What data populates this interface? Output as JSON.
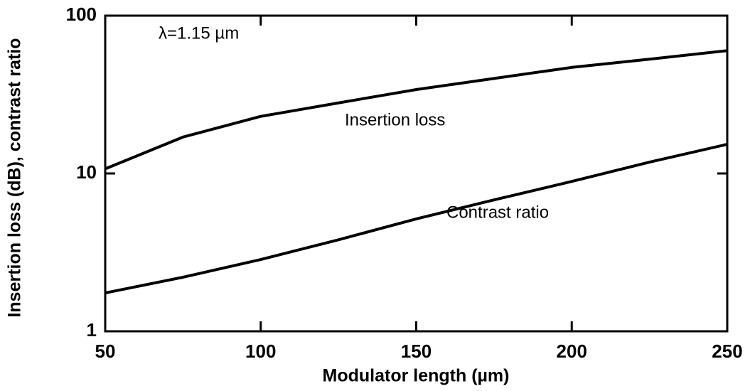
{
  "chart_data": {
    "type": "line",
    "xlabel": "Modulator length (µm)",
    "ylabel": "Insertion loss (dB), contrast ratio",
    "x": [
      50,
      75,
      100,
      125,
      150,
      175,
      200,
      225,
      250
    ],
    "series": [
      {
        "name": "Insertion loss",
        "color": "#000000",
        "values": [
          10.7,
          17,
          23,
          28,
          34,
          40,
          47,
          53,
          60
        ]
      },
      {
        "name": "Contrast ratio",
        "color": "#000000",
        "values": [
          1.75,
          2.2,
          2.85,
          3.8,
          5.15,
          6.8,
          8.9,
          11.8,
          15.3
        ]
      }
    ],
    "annotations": [
      "λ=1.15 µm"
    ],
    "xlim": [
      50,
      250
    ],
    "xticks": [
      50,
      100,
      150,
      200,
      250
    ],
    "ylim": [
      1,
      100
    ],
    "yticks": [
      1,
      10,
      100
    ],
    "ylog": true
  }
}
